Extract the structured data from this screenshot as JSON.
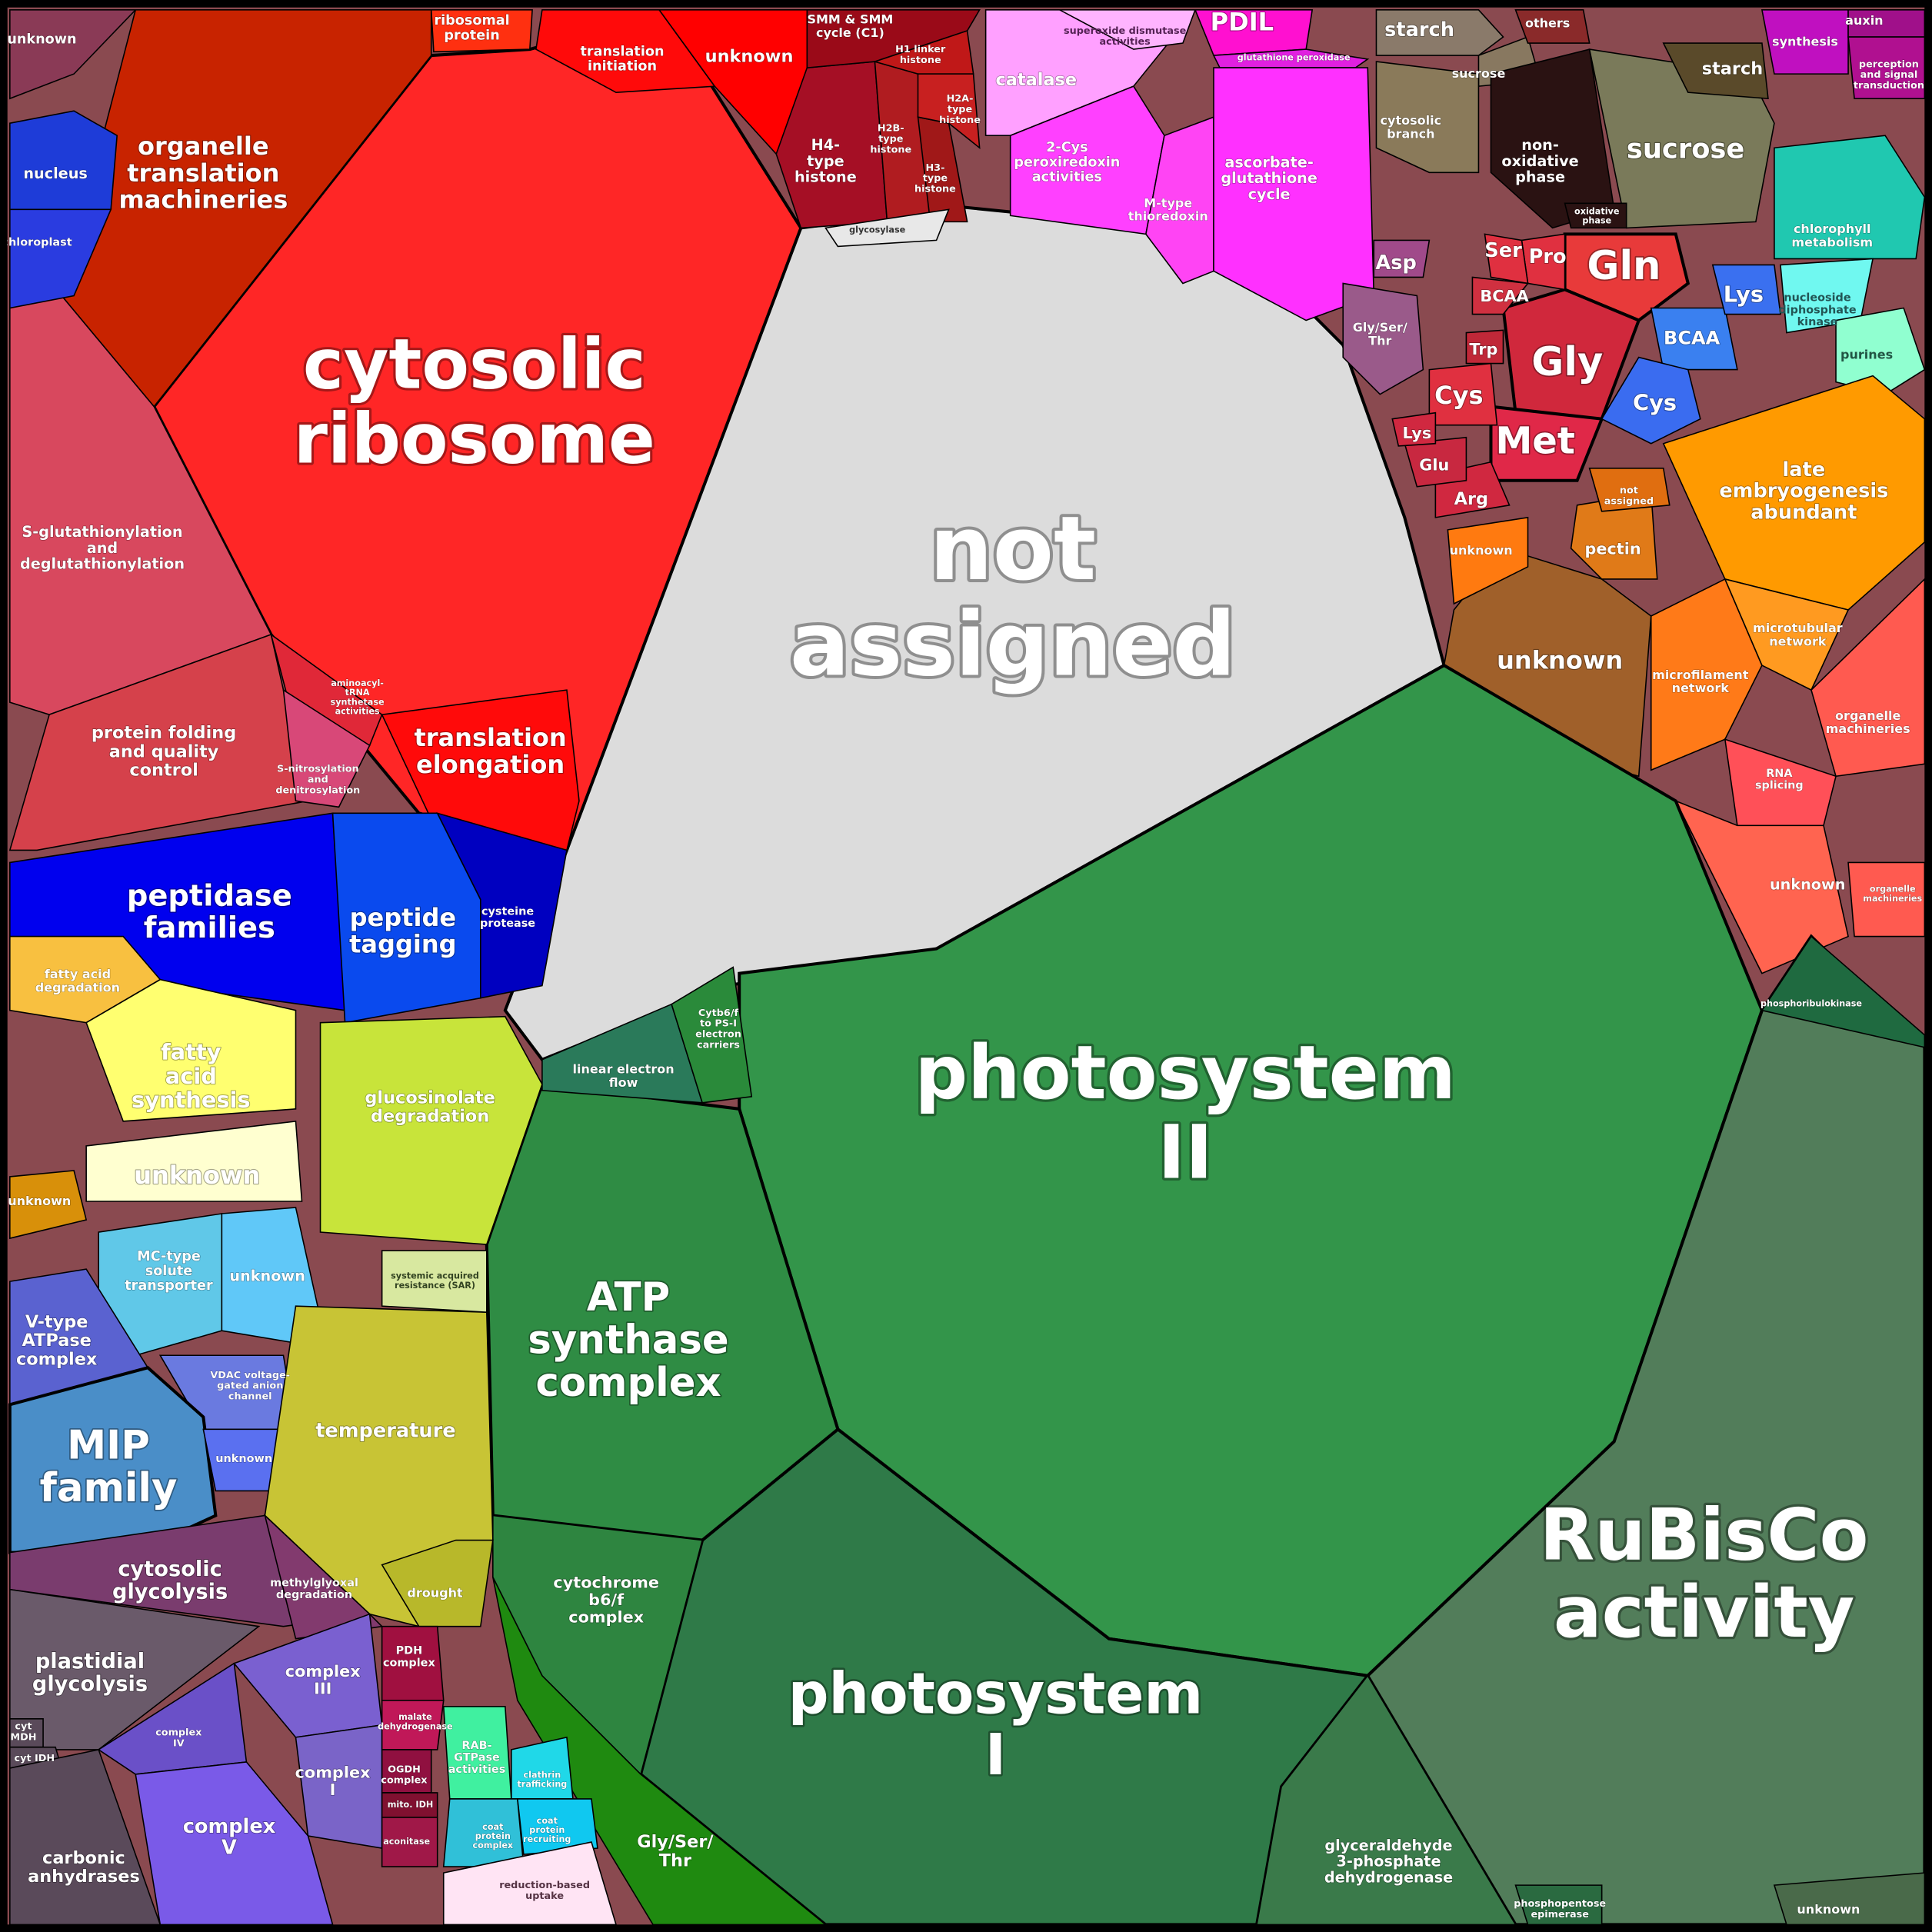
{
  "cells": [
    {
      "label": [
        "not",
        "assigned"
      ]
    },
    {
      "label": [
        "cytosolic",
        "ribosome"
      ]
    },
    {
      "label": [
        "organelle",
        "translation",
        "machineries"
      ]
    },
    {
      "label": [
        "translation",
        "elongation"
      ]
    },
    {
      "label": [
        "ribosomal",
        "protein"
      ]
    },
    {
      "label": [
        "translation",
        "initiation"
      ]
    },
    {
      "label": [
        "unknown"
      ]
    },
    {
      "label": [
        "H4-",
        "type",
        "histone"
      ]
    },
    {
      "label": [
        "SMM & SMM",
        "cycle (C1)"
      ]
    },
    {
      "label": [
        "H2B-",
        "type",
        "histone"
      ]
    },
    {
      "label": [
        "H3-",
        "type",
        "histone"
      ]
    },
    {
      "label": [
        "H1 linker",
        "histone"
      ]
    },
    {
      "label": [
        "H2A-",
        "type",
        "histone"
      ]
    },
    {
      "label": [
        "catalase"
      ]
    },
    {
      "label": [
        "superoxide dismutase",
        "activities"
      ]
    },
    {
      "label": [
        "PDIL"
      ]
    },
    {
      "label": [
        "glutathione peroxidase"
      ]
    },
    {
      "label": [
        "2-Cys",
        "peroxiredoxin",
        "activities"
      ]
    },
    {
      "label": [
        "M-type",
        "thioredoxin"
      ]
    },
    {
      "label": [
        "ascorbate-",
        "glutathione",
        "cycle"
      ]
    },
    {
      "label": [
        "starch"
      ]
    },
    {
      "label": [
        "sucrose"
      ]
    },
    {
      "label": [
        "cytosolic",
        "branch"
      ]
    },
    {
      "label": [
        "non-",
        "oxidative",
        "phase"
      ]
    },
    {
      "label": [
        "sucrose"
      ]
    },
    {
      "label": [
        "oxidative",
        "phase"
      ]
    },
    {
      "label": [
        "others"
      ]
    },
    {
      "label": [
        "starch"
      ]
    },
    {
      "label": [
        "synthesis"
      ]
    },
    {
      "label": [
        "auxin"
      ]
    },
    {
      "label": [
        "perception",
        "and signal",
        "transduction"
      ]
    },
    {
      "label": [
        "chlorophyll",
        "metabolism"
      ]
    },
    {
      "label": [
        "nucleoside",
        "diphosphate",
        "kinase"
      ]
    },
    {
      "label": [
        "purines"
      ]
    },
    {
      "label": [
        "Gln"
      ]
    },
    {
      "label": [
        "Gly"
      ]
    },
    {
      "label": [
        "Met"
      ]
    },
    {
      "label": [
        "Pro"
      ]
    },
    {
      "label": [
        "Ser"
      ]
    },
    {
      "label": [
        "BCAA"
      ]
    },
    {
      "label": [
        "Cys"
      ]
    },
    {
      "label": [
        "Asp"
      ]
    },
    {
      "label": [
        "Gly/Ser/",
        "Thr"
      ]
    },
    {
      "label": [
        "Arg"
      ]
    },
    {
      "label": [
        "Glu"
      ]
    },
    {
      "label": [
        "Lys"
      ]
    },
    {
      "label": [
        "Trp"
      ]
    },
    {
      "label": [
        "BCAA"
      ]
    },
    {
      "label": [
        "Cys"
      ]
    },
    {
      "label": [
        "Lys"
      ]
    },
    {
      "label": [
        "late",
        "embryogenesis",
        "abundant"
      ]
    },
    {
      "label": [
        "unknown"
      ]
    },
    {
      "label": [
        "pectin"
      ]
    },
    {
      "label": [
        "not",
        "assigned"
      ]
    },
    {
      "label": [
        "unknown"
      ]
    },
    {
      "label": [
        "microfilament",
        "network"
      ]
    },
    {
      "label": [
        "microtubular",
        "network"
      ]
    },
    {
      "label": [
        "organelle",
        "machineries"
      ]
    },
    {
      "label": [
        "RNA",
        "splicing"
      ]
    },
    {
      "label": [
        "unknown"
      ]
    },
    {
      "label": [
        "organelle",
        "machineries"
      ]
    },
    {
      "label": [
        "photosystem",
        "II"
      ]
    },
    {
      "label": [
        "RuBisCo",
        "activity"
      ]
    },
    {
      "label": [
        "photosystem",
        "I"
      ]
    },
    {
      "label": [
        "ATP",
        "synthase",
        "complex"
      ]
    },
    {
      "label": [
        "cytochrome",
        "b6/f",
        "complex"
      ]
    },
    {
      "label": [
        "Gly/Ser/",
        "Thr"
      ]
    },
    {
      "label": [
        "glyceraldehyde",
        "3-phosphate",
        "dehydrogenase"
      ]
    },
    {
      "label": [
        "linear electron",
        "flow"
      ]
    },
    {
      "label": [
        "Cytb6/f",
        "to PS-I",
        "electron",
        "carriers"
      ]
    },
    {
      "label": [
        "phosphoribulokinase"
      ]
    },
    {
      "label": [
        "S-glutathionylation",
        "and",
        "deglutathionylation"
      ]
    },
    {
      "label": [
        "protein folding",
        "and quality",
        "control"
      ]
    },
    {
      "label": [
        "peptidase",
        "families"
      ]
    },
    {
      "label": [
        "peptide",
        "tagging"
      ]
    },
    {
      "label": [
        "cysteine",
        "protease"
      ]
    },
    {
      "label": [
        "unknown"
      ]
    },
    {
      "label": [
        "nucleus"
      ]
    },
    {
      "label": [
        "chloroplast"
      ]
    },
    {
      "label": [
        "aminoacyl-",
        "tRNA",
        "synthetase",
        "activities"
      ]
    },
    {
      "label": [
        "S-nitrosylation",
        "and",
        "denitrosylation"
      ]
    },
    {
      "label": [
        "fatty acid",
        "degradation"
      ]
    },
    {
      "label": [
        "fatty",
        "acid",
        "synthesis"
      ]
    },
    {
      "label": [
        "unknown"
      ]
    },
    {
      "label": [
        "glucosinolate",
        "degradation"
      ]
    },
    {
      "label": [
        "MC-type",
        "solute",
        "transporter"
      ]
    },
    {
      "label": [
        "unknown"
      ]
    },
    {
      "label": [
        "V-type",
        "ATPase",
        "complex"
      ]
    },
    {
      "label": [
        "VDAC voltage-",
        "gated anion",
        "channel"
      ]
    },
    {
      "label": [
        "MIP",
        "family"
      ]
    },
    {
      "label": [
        "unknown"
      ]
    },
    {
      "label": [
        "temperature"
      ]
    },
    {
      "label": [
        "drought"
      ]
    },
    {
      "label": [
        "systemic acquired",
        "resistance (SAR)"
      ]
    },
    {
      "label": [
        "cytosolic",
        "glycolysis"
      ]
    },
    {
      "label": [
        "methylglyoxal",
        "degradation"
      ]
    },
    {
      "label": [
        "plastidial",
        "glycolysis"
      ]
    },
    {
      "label": [
        "cyt",
        "MDH"
      ]
    },
    {
      "label": [
        "cyt IDH"
      ]
    },
    {
      "label": [
        "carbonic",
        "anhydrases"
      ]
    },
    {
      "label": [
        "complex",
        "III"
      ]
    },
    {
      "label": [
        "complex",
        "IV"
      ]
    },
    {
      "label": [
        "complex",
        "I"
      ]
    },
    {
      "label": [
        "complex",
        "V"
      ]
    },
    {
      "label": [
        "PDH",
        "complex"
      ]
    },
    {
      "label": [
        "malate",
        "dehydrogenase"
      ]
    },
    {
      "label": [
        "OGDH",
        "complex"
      ]
    },
    {
      "label": [
        "mito. IDH"
      ]
    },
    {
      "label": [
        "aconitase"
      ]
    },
    {
      "label": [
        "RAB-",
        "GTPase",
        "activities"
      ]
    },
    {
      "label": [
        "clathrin",
        "trafficking"
      ]
    },
    {
      "label": [
        "coat",
        "protein",
        "complex"
      ]
    },
    {
      "label": [
        "coat",
        "protein",
        "recruiting"
      ]
    },
    {
      "label": [
        "reduction-based",
        "uptake"
      ]
    },
    {
      "label": [
        "unknown"
      ]
    },
    {
      "label": [
        "phosphopentose",
        "epimerase"
      ]
    },
    {
      "label": [
        "glycosylase"
      ]
    },
    {
      "label": [
        "unknown"
      ]
    }
  ]
}
